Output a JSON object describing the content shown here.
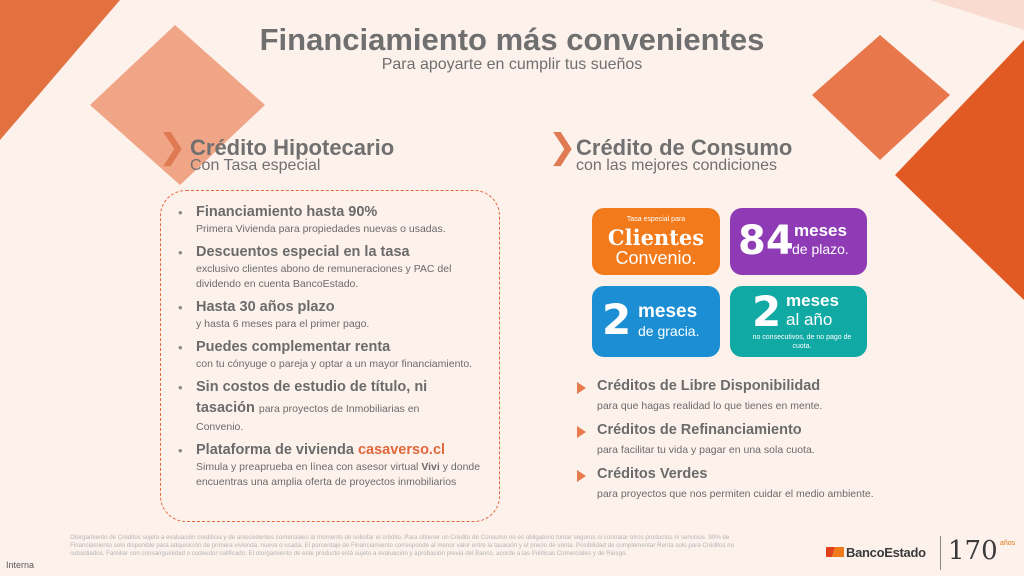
{
  "header": {
    "title": "Financiamiento más convenientes",
    "subtitle": "Para apoyarte en cumplir tus sueños"
  },
  "left": {
    "heading": "Crédito Hipotecario",
    "subheading": "Con Tasa especial",
    "bullets": [
      {
        "title": "Financiamiento hasta 90%",
        "text": "Primera Vivienda para propiedades nuevas o usadas."
      },
      {
        "title": "Descuentos especial en la tasa",
        "text": "exclusivo clientes abono de remuneraciones y PAC del dividendo en cuenta BancoEstado."
      },
      {
        "title": "Hasta 30 años plazo",
        "text": "y hasta 6 meses para el primer pago."
      },
      {
        "title": "Puedes complementar renta",
        "text": "con tu cónyuge o pareja y optar a un mayor financiamiento."
      },
      {
        "title": "Sin costos de estudio de título, ni tasación",
        "text_inline": "para proyectos de Inmobiliarias en",
        "text": "Convenio."
      },
      {
        "title": "Plataforma de vivienda",
        "link": "casaverso.cl",
        "text_pre": "Simula y preaprueba en línea con asesor virtual",
        "text_bold": "Vivi",
        "text_post": "y donde encuentras una amplia oferta de proyectos inmobiliarios"
      }
    ]
  },
  "right": {
    "heading": "Crédito de Consumo",
    "subheading": "con las mejores condiciones",
    "tiles": {
      "t1": {
        "small": "Tasa especial para",
        "big": "Clientes",
        "mid": "Convenio.",
        "color": "#f27a1a"
      },
      "t2": {
        "num": "84",
        "big": "meses",
        "mid": "de plazo.",
        "color": "#8e3bb5"
      },
      "t3": {
        "num": "2",
        "big": "meses",
        "mid": "de gracia.",
        "color": "#1c8fd4"
      },
      "t4": {
        "num": "2",
        "big": "meses",
        "mid": "al año",
        "small": "no consecutivos, de no pago de cuota.",
        "color": "#11a9a4"
      }
    },
    "items": [
      {
        "title": "Créditos de Libre Disponibilidad",
        "text": "para que hagas realidad lo que tienes en mente."
      },
      {
        "title": "Créditos de Refinanciamiento",
        "text": "para facilitar tu vida y pagar en una sola cuota."
      },
      {
        "title": "Créditos Verdes",
        "text": "para proyectos que nos permiten cuidar el medio ambiente."
      }
    ]
  },
  "footer": {
    "disclaimer": "Otorgamiento de Créditos sujeto a evaluación crediticia y de antecedentes comerciales al momento de solicitar el crédito. Para obtener un Crédito de Consumo no es obligatorio tomar seguros ni contratar otros productos ni servicios. 90% de Financiamiento solo disponible para adquisición de primera vivienda, nueva o usada. El porcentaje de Financiamiento corresponde al menor valor entre la tasación y el precio de venta. Posibilidad de complementar Renta solo para Créditos no subsidiados. Familiar con consanguinidad o codeudor calificado. El otorgamiento de este producto está sujeto a evaluación y aprobación previa del Banco, acorde a las Políticas Comerciales y de Riesgo.",
    "interna": "Interna",
    "brand": "BancoEstado",
    "anniv": "170",
    "anniv_label": "años"
  }
}
